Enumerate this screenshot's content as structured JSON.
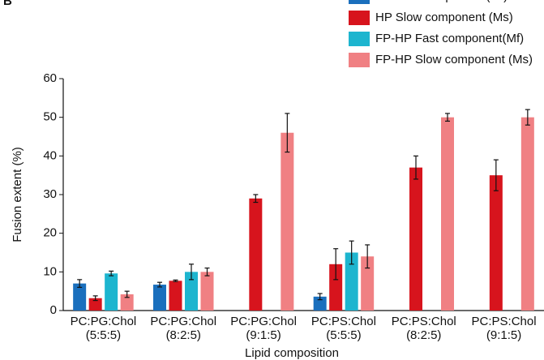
{
  "chart_data": {
    "type": "bar",
    "panel_label": "B",
    "xlabel": "Lipid composition",
    "ylabel": "Fusion extent (%)",
    "categories": [
      [
        "PC:PG:Chol",
        "(5:5:5)"
      ],
      [
        "PC:PG:Chol",
        "(8:2:5)"
      ],
      [
        "PC:PG:Chol",
        "(9:1:5)"
      ],
      [
        "PC:PS:Chol",
        "(5:5:5)"
      ],
      [
        "PC:PS:Chol",
        "(8:2:5)"
      ],
      [
        "PC:PS:Chol",
        "(9:1:5)"
      ]
    ],
    "series": [
      {
        "name": "HP Fast component (Mf)",
        "color": "#1a6fbd",
        "values": [
          7,
          6.7,
          null,
          3.6,
          null,
          null
        ],
        "errors": [
          1,
          0.6,
          null,
          0.8,
          null,
          null
        ]
      },
      {
        "name": "HP Slow component (Ms)",
        "color": "#d7141d",
        "values": [
          3.2,
          7.7,
          29,
          12,
          37,
          35
        ],
        "errors": [
          0.6,
          0.2,
          1,
          4,
          3,
          4
        ]
      },
      {
        "name": "FP-HP Fast component(Mf)",
        "color": "#1db5cf",
        "values": [
          9.6,
          10,
          null,
          15,
          null,
          null
        ],
        "errors": [
          0.6,
          2,
          null,
          3,
          null,
          null
        ]
      },
      {
        "name": "FP-HP Slow component (Ms)",
        "color": "#f08083",
        "values": [
          4.2,
          10,
          46,
          14,
          50,
          50
        ],
        "errors": [
          0.8,
          1,
          5,
          3,
          1,
          2
        ]
      }
    ],
    "ylim": [
      0,
      60
    ],
    "yticks": [
      0,
      10,
      20,
      30,
      40,
      50,
      60
    ],
    "legend": "upper right"
  }
}
